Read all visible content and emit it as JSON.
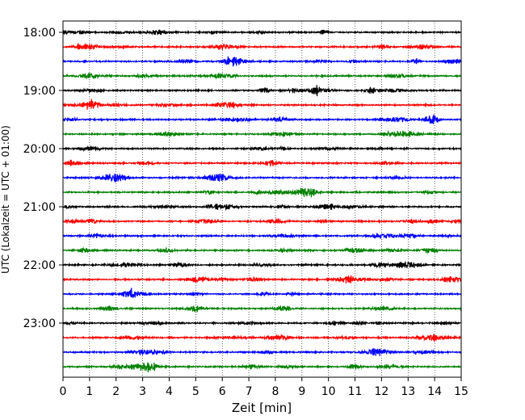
{
  "chart_data": {
    "type": "line",
    "title": "",
    "xlabel": "Zeit  [min]",
    "ylabel": "UTC (Lokalzeit = UTC + 01:00)",
    "xlim": [
      0,
      15
    ],
    "x_ticks": [
      "0",
      "1",
      "2",
      "3",
      "4",
      "5",
      "6",
      "7",
      "8",
      "9",
      "10",
      "11",
      "12",
      "13",
      "14",
      "15"
    ],
    "y_tick_labels": [
      "18:00",
      "19:00",
      "20:00",
      "21:00",
      "22:00",
      "23:00"
    ],
    "grid": "vertical dotted",
    "trace_interval_minutes": 15,
    "start_time": "18:00",
    "trace_count": 24,
    "trace_colors": [
      "#000000",
      "#ff0000",
      "#0000ff",
      "#008000"
    ]
  }
}
